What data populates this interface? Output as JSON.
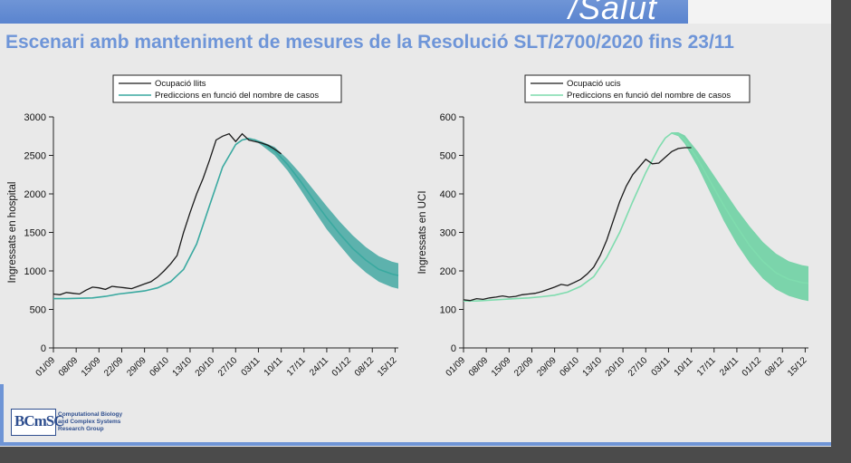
{
  "header": {
    "brand": "/Salut",
    "title": "Escenari amb manteniment de mesures de la Resolució SLT/2700/2020 fins 23/11"
  },
  "logo": {
    "letters": "BCmSC",
    "line1": "Computational Biology",
    "line2": "and Complex Systems",
    "line3": "Research Group"
  },
  "colors": {
    "observed": "#1a1a1a",
    "prediction_hospital": "#3aa9a0",
    "band_hospital": "#2e9f98",
    "prediction_icu": "#7fdcae",
    "band_icu": "#55cc96",
    "title": "#6e95d8",
    "topbar": "#5a84cf"
  },
  "chart_data": [
    {
      "type": "line",
      "xlabel": "",
      "ylabel": "Ingressats en hospital",
      "ylim": [
        0,
        3000
      ],
      "yticks": [
        0,
        500,
        1000,
        1500,
        2000,
        2500,
        3000
      ],
      "xticks": [
        "01/09",
        "08/09",
        "15/09",
        "22/09",
        "29/09",
        "06/10",
        "13/10",
        "20/10",
        "27/10",
        "03/11",
        "10/11",
        "17/11",
        "24/11",
        "01/12",
        "08/12",
        "15/12"
      ],
      "xlim": [
        0,
        106
      ],
      "legend_position": "top-right",
      "series": [
        {
          "name": "Ocupació llits",
          "kind": "observed",
          "x": [
            0,
            2,
            4,
            6,
            8,
            10,
            12,
            14,
            16,
            18,
            20,
            22,
            24,
            26,
            28,
            30,
            32,
            34,
            36,
            38,
            40,
            42,
            44,
            46,
            48,
            50,
            52,
            54,
            56,
            58,
            60,
            62,
            64,
            66,
            68,
            70
          ],
          "y": [
            700,
            690,
            720,
            710,
            700,
            750,
            790,
            780,
            760,
            800,
            790,
            780,
            770,
            800,
            830,
            860,
            920,
            1000,
            1090,
            1200,
            1500,
            1760,
            2000,
            2200,
            2440,
            2700,
            2750,
            2780,
            2680,
            2780,
            2700,
            2680,
            2660,
            2630,
            2580,
            2520
          ]
        },
        {
          "name": "Prediccions en funció del nombre de casos",
          "kind": "prediction",
          "x": [
            0,
            4,
            8,
            12,
            16,
            20,
            24,
            28,
            32,
            36,
            40,
            44,
            48,
            52,
            56,
            58,
            60,
            62,
            64,
            68,
            72,
            76,
            80,
            84,
            88,
            92,
            96,
            100,
            104,
            106
          ],
          "y": [
            640,
            640,
            645,
            650,
            670,
            700,
            720,
            740,
            780,
            860,
            1020,
            1350,
            1850,
            2350,
            2640,
            2700,
            2720,
            2700,
            2660,
            2560,
            2380,
            2160,
            1920,
            1690,
            1480,
            1290,
            1140,
            1020,
            960,
            940
          ],
          "lower": [
            640,
            640,
            645,
            650,
            670,
            700,
            720,
            740,
            780,
            860,
            1020,
            1350,
            1850,
            2350,
            2640,
            2700,
            2720,
            2690,
            2630,
            2500,
            2300,
            2050,
            1790,
            1540,
            1330,
            1130,
            980,
            860,
            790,
            770
          ],
          "upper": [
            640,
            640,
            645,
            650,
            670,
            700,
            720,
            740,
            780,
            860,
            1020,
            1350,
            1850,
            2350,
            2640,
            2700,
            2720,
            2710,
            2680,
            2610,
            2450,
            2260,
            2050,
            1840,
            1640,
            1460,
            1310,
            1190,
            1120,
            1100
          ]
        }
      ]
    },
    {
      "type": "line",
      "xlabel": "",
      "ylabel": "Ingressats en UCI",
      "ylim": [
        0,
        600
      ],
      "yticks": [
        0,
        100,
        200,
        300,
        400,
        500,
        600
      ],
      "xticks": [
        "01/09",
        "08/09",
        "15/09",
        "22/09",
        "29/09",
        "06/10",
        "13/10",
        "20/10",
        "27/10",
        "03/11",
        "10/11",
        "17/11",
        "24/11",
        "01/12",
        "08/12",
        "15/12"
      ],
      "xlim": [
        0,
        106
      ],
      "legend_position": "top-right",
      "series": [
        {
          "name": "Ocupació ucis",
          "kind": "observed",
          "x": [
            0,
            2,
            4,
            6,
            8,
            10,
            12,
            14,
            16,
            18,
            20,
            22,
            24,
            26,
            28,
            30,
            32,
            34,
            36,
            38,
            40,
            42,
            44,
            46,
            48,
            50,
            52,
            54,
            56,
            58,
            60,
            62,
            64,
            66,
            68,
            70
          ],
          "y": [
            125,
            123,
            128,
            126,
            130,
            132,
            135,
            132,
            134,
            138,
            140,
            142,
            146,
            152,
            158,
            165,
            162,
            170,
            178,
            192,
            210,
            240,
            280,
            330,
            380,
            420,
            450,
            470,
            490,
            478,
            480,
            495,
            510,
            518,
            520,
            520
          ]
        },
        {
          "name": "Prediccions en funció del nombre de casos",
          "kind": "prediction",
          "x": [
            0,
            4,
            8,
            12,
            16,
            20,
            24,
            28,
            32,
            36,
            40,
            44,
            48,
            52,
            56,
            60,
            62,
            64,
            66,
            68,
            72,
            76,
            80,
            84,
            88,
            92,
            96,
            100,
            104,
            106
          ],
          "y": [
            122,
            122,
            124,
            126,
            128,
            130,
            133,
            137,
            145,
            160,
            185,
            235,
            300,
            380,
            455,
            520,
            545,
            558,
            555,
            540,
            490,
            430,
            370,
            315,
            265,
            225,
            195,
            178,
            170,
            168
          ],
          "lower": [
            122,
            122,
            124,
            126,
            128,
            130,
            133,
            137,
            145,
            160,
            185,
            235,
            300,
            380,
            455,
            520,
            545,
            556,
            550,
            530,
            470,
            400,
            330,
            270,
            220,
            180,
            152,
            135,
            125,
            122
          ],
          "upper": [
            122,
            122,
            124,
            126,
            128,
            130,
            133,
            137,
            145,
            160,
            185,
            235,
            300,
            380,
            455,
            520,
            545,
            560,
            560,
            552,
            510,
            460,
            410,
            360,
            315,
            275,
            245,
            225,
            215,
            212
          ]
        }
      ]
    }
  ]
}
